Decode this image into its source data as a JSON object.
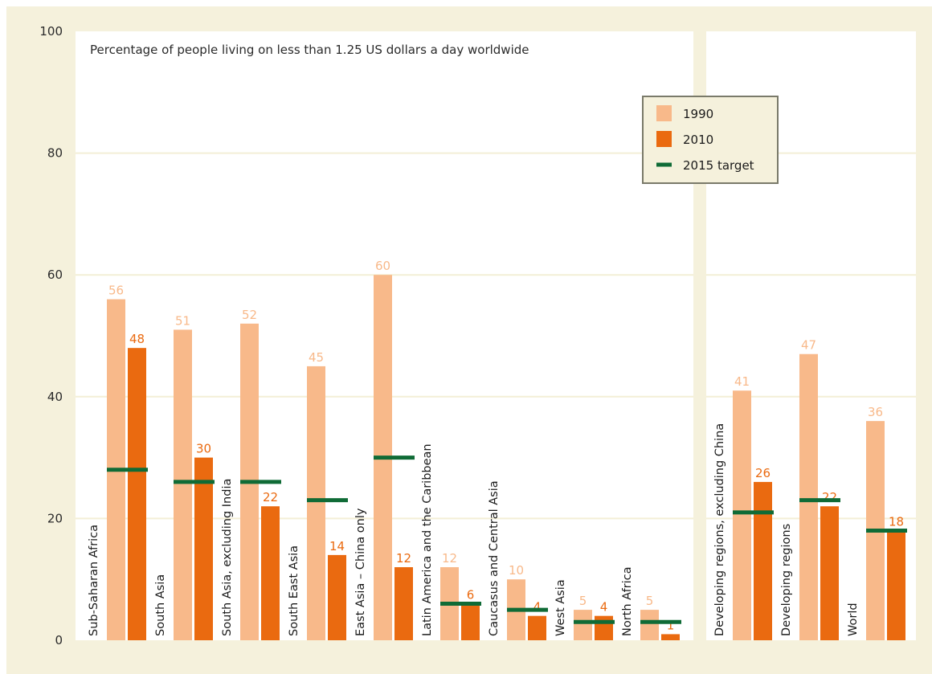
{
  "chart_data": {
    "type": "bar",
    "title": "Percentage of people living on less than 1.25 US dollars a day worldwide",
    "ylim": [
      0,
      100
    ],
    "yticks": [
      0,
      20,
      40,
      60,
      80,
      100
    ],
    "grid": true,
    "legend_position": "top-right",
    "categories": [
      "Sub-Saharan Africa",
      "South Asia",
      "South Asia, excluding India",
      "South East Asia",
      "East Asia – China only",
      "Latin America and the Caribbean",
      "Caucasus and Central Asia",
      "West Asia",
      "North Africa",
      "Developing regions, excluding China",
      "Developing regions",
      "World"
    ],
    "panels": [
      {
        "categories_from": 0,
        "categories_to": 8
      },
      {
        "categories_from": 9,
        "categories_to": 11
      }
    ],
    "series": [
      {
        "name": "1990",
        "color": "#f8b98a",
        "values": [
          56,
          51,
          52,
          45,
          60,
          12,
          10,
          5,
          5,
          41,
          47,
          36
        ]
      },
      {
        "name": "2010",
        "color": "#ea6a10",
        "values": [
          48,
          30,
          22,
          14,
          12,
          6,
          4,
          4,
          1,
          26,
          22,
          18
        ]
      }
    ],
    "target": {
      "name": "2015 target",
      "color": "#0f6b36",
      "values": [
        28,
        26,
        26,
        23,
        30,
        6,
        5,
        3,
        3,
        21,
        23,
        18
      ]
    },
    "legend": [
      "1990",
      "2010",
      "2015 target"
    ]
  }
}
